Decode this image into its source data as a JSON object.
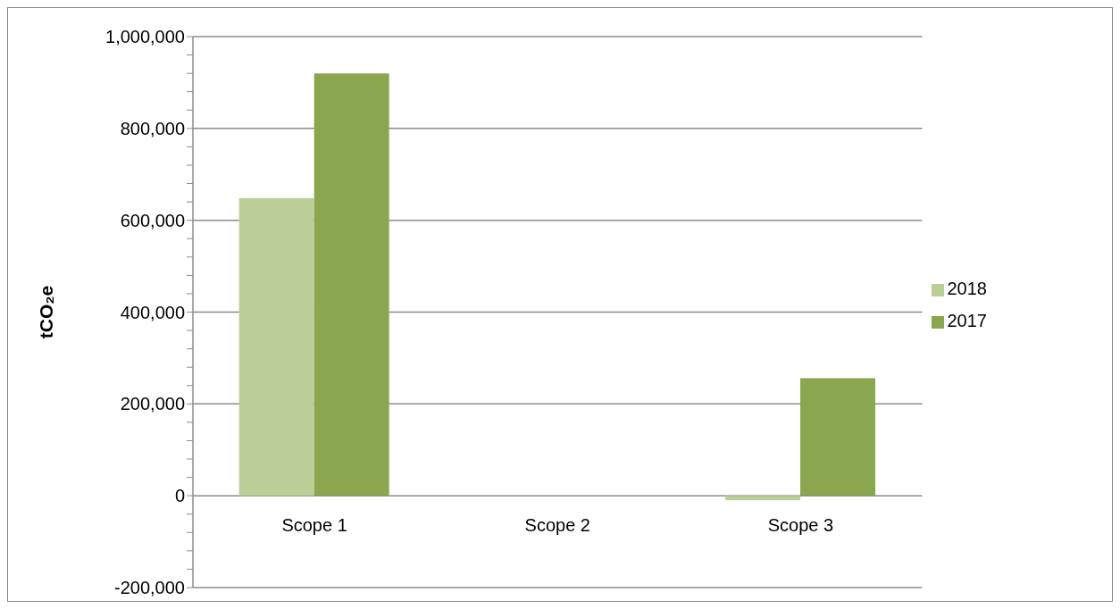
{
  "chart_data": {
    "type": "bar",
    "ylabel": "tCO₂e",
    "categories": [
      "Scope 1",
      "Scope 2",
      "Scope 3"
    ],
    "series": [
      {
        "name": "2018",
        "color": "#b9cf97",
        "values": [
          648000,
          null,
          -10000
        ]
      },
      {
        "name": "2017",
        "color": "#8aa64e",
        "values": [
          920000,
          null,
          256000
        ]
      }
    ],
    "ylim": [
      -200000,
      1000000
    ],
    "yticks": [
      {
        "value": -200000,
        "label": "-200,000"
      },
      {
        "value": -160000,
        "label": null
      },
      {
        "value": -120000,
        "label": null
      },
      {
        "value": -80000,
        "label": null
      },
      {
        "value": -40000,
        "label": null
      },
      {
        "value": 0,
        "label": "0"
      },
      {
        "value": 40000,
        "label": null
      },
      {
        "value": 80000,
        "label": null
      },
      {
        "value": 120000,
        "label": null
      },
      {
        "value": 160000,
        "label": null
      },
      {
        "value": 200000,
        "label": "200,000"
      },
      {
        "value": 240000,
        "label": null
      },
      {
        "value": 280000,
        "label": null
      },
      {
        "value": 320000,
        "label": null
      },
      {
        "value": 360000,
        "label": null
      },
      {
        "value": 400000,
        "label": "400,000"
      },
      {
        "value": 440000,
        "label": null
      },
      {
        "value": 480000,
        "label": null
      },
      {
        "value": 520000,
        "label": null
      },
      {
        "value": 560000,
        "label": null
      },
      {
        "value": 600000,
        "label": "600,000"
      },
      {
        "value": 640000,
        "label": null
      },
      {
        "value": 680000,
        "label": null
      },
      {
        "value": 720000,
        "label": null
      },
      {
        "value": 760000,
        "label": null
      },
      {
        "value": 800000,
        "label": "800,000"
      },
      {
        "value": 840000,
        "label": null
      },
      {
        "value": 880000,
        "label": null
      },
      {
        "value": 920000,
        "label": null
      },
      {
        "value": 960000,
        "label": null
      },
      {
        "value": 1000000,
        "label": "1,000,000"
      }
    ],
    "grid": "y",
    "legend": "right"
  }
}
